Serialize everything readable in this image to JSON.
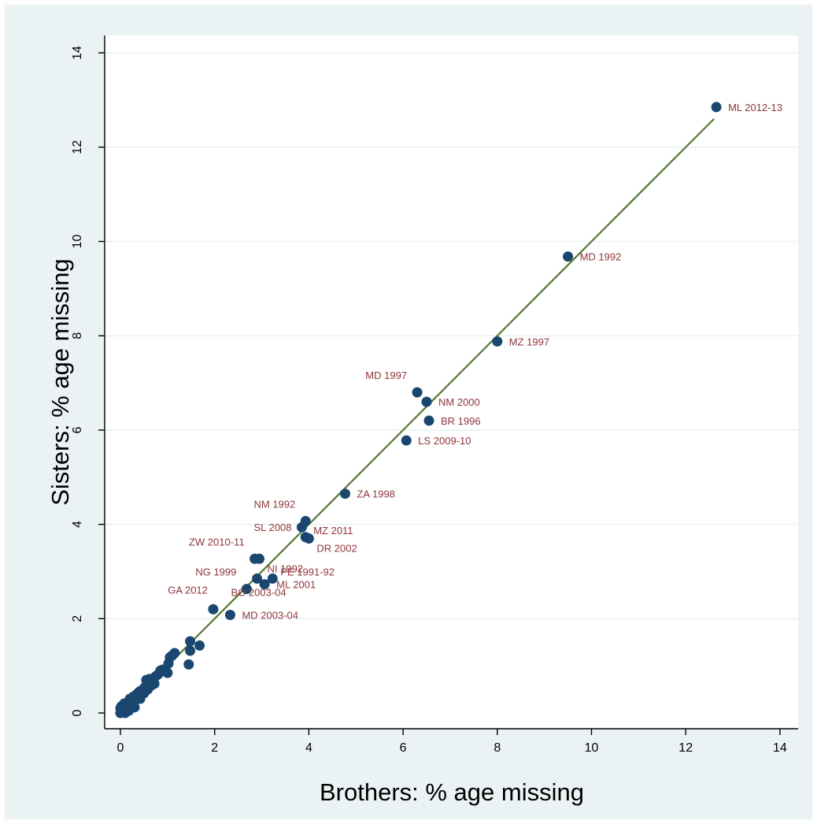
{
  "chart_data": {
    "type": "scatter",
    "xlabel": "Brothers: % age missing",
    "ylabel": "Sisters: % age missing",
    "xlim": [
      -0.4,
      14.3
    ],
    "ylim": [
      -0.4,
      14.5
    ],
    "xticks": [
      0,
      2,
      4,
      6,
      8,
      10,
      12,
      14
    ],
    "yticks": [
      0,
      2,
      4,
      6,
      8,
      10,
      12,
      14
    ],
    "grid": true,
    "colors": {
      "background": "#eaf2f3",
      "plot_area": "#ffffff",
      "grid": "#eaf2f3",
      "marker": "#1a476f",
      "fit_line": "#55752f",
      "label": "#90353b"
    },
    "fit_line": {
      "x": [
        0,
        12.6
      ],
      "y": [
        0,
        12.6
      ]
    },
    "labeled_points": [
      {
        "label": "ML 2012-13",
        "x": 12.65,
        "y": 12.85,
        "pos": "right"
      },
      {
        "label": "MD 1992",
        "x": 9.5,
        "y": 9.68,
        "pos": "right"
      },
      {
        "label": "MZ 1997",
        "x": 8.0,
        "y": 7.88,
        "pos": "right"
      },
      {
        "label": "MD 1997",
        "x": 6.3,
        "y": 6.8,
        "pos": "above-left"
      },
      {
        "label": "NM 2000",
        "x": 6.5,
        "y": 6.6,
        "pos": "right"
      },
      {
        "label": "BR 1996",
        "x": 6.55,
        "y": 6.2,
        "pos": "right"
      },
      {
        "label": "LS 2009-10",
        "x": 6.07,
        "y": 5.78,
        "pos": "right"
      },
      {
        "label": "ZA 1998",
        "x": 4.77,
        "y": 4.65,
        "pos": "right"
      },
      {
        "label": "NM 1992",
        "x": 3.93,
        "y": 4.07,
        "pos": "above-left"
      },
      {
        "label": "SL 2008",
        "x": 3.85,
        "y": 3.94,
        "pos": "left"
      },
      {
        "label": "MZ 2011",
        "x": 3.93,
        "y": 3.73,
        "pos": "upper-right"
      },
      {
        "label": "DR 2002",
        "x": 4.0,
        "y": 3.7,
        "pos": "lower-right"
      },
      {
        "label": "ZW 2010-11",
        "x": 2.85,
        "y": 3.27,
        "pos": "above-left"
      },
      {
        "label": "NI 1992",
        "x": 2.95,
        "y": 3.27,
        "pos": "lower-right"
      },
      {
        "label": "PE 1991-92",
        "x": 3.23,
        "y": 2.85,
        "pos": "upper-right"
      },
      {
        "label": "ML 2001",
        "x": 3.06,
        "y": 2.73,
        "pos": "right"
      },
      {
        "label": "NG 1999",
        "x": 2.68,
        "y": 2.63,
        "pos": "above-left"
      },
      {
        "label": "BO 2003-04",
        "x": 2.9,
        "y": 2.85,
        "pos": "below"
      },
      {
        "label": "GA 2012",
        "x": 1.97,
        "y": 2.2,
        "pos": "upper-left"
      },
      {
        "label": "MD 2003-04",
        "x": 2.33,
        "y": 2.08,
        "pos": "right"
      }
    ],
    "points": [
      [
        0.0,
        0.0
      ],
      [
        0.0,
        0.1
      ],
      [
        0.02,
        0.14
      ],
      [
        0.05,
        0.05
      ],
      [
        0.08,
        0.2
      ],
      [
        0.1,
        0.0
      ],
      [
        0.12,
        0.12
      ],
      [
        0.15,
        0.22
      ],
      [
        0.18,
        0.05
      ],
      [
        0.2,
        0.3
      ],
      [
        0.22,
        0.18
      ],
      [
        0.25,
        0.25
      ],
      [
        0.28,
        0.35
      ],
      [
        0.3,
        0.12
      ],
      [
        0.32,
        0.28
      ],
      [
        0.35,
        0.4
      ],
      [
        0.38,
        0.35
      ],
      [
        0.4,
        0.45
      ],
      [
        0.42,
        0.3
      ],
      [
        0.45,
        0.48
      ],
      [
        0.5,
        0.42
      ],
      [
        0.52,
        0.55
      ],
      [
        0.55,
        0.7
      ],
      [
        0.58,
        0.5
      ],
      [
        0.6,
        0.62
      ],
      [
        0.62,
        0.72
      ],
      [
        0.65,
        0.58
      ],
      [
        0.68,
        0.7
      ],
      [
        0.72,
        0.62
      ],
      [
        0.75,
        0.78
      ],
      [
        0.8,
        0.82
      ],
      [
        0.85,
        0.9
      ],
      [
        0.9,
        0.92
      ],
      [
        0.95,
        0.88
      ],
      [
        1.0,
        0.85
      ],
      [
        1.02,
        1.05
      ],
      [
        1.05,
        1.18
      ],
      [
        1.1,
        1.22
      ],
      [
        1.15,
        1.27
      ],
      [
        1.48,
        1.52
      ],
      [
        1.48,
        1.32
      ],
      [
        1.45,
        1.03
      ],
      [
        1.68,
        1.43
      ],
      [
        12.65,
        12.85
      ],
      [
        9.5,
        9.68
      ],
      [
        8.0,
        7.88
      ],
      [
        6.3,
        6.8
      ],
      [
        6.5,
        6.6
      ],
      [
        6.55,
        6.2
      ],
      [
        6.07,
        5.78
      ],
      [
        4.77,
        4.65
      ],
      [
        3.93,
        4.07
      ],
      [
        3.85,
        3.94
      ],
      [
        3.93,
        3.73
      ],
      [
        4.0,
        3.7
      ],
      [
        2.85,
        3.27
      ],
      [
        2.95,
        3.27
      ],
      [
        3.23,
        2.85
      ],
      [
        3.06,
        2.73
      ],
      [
        2.68,
        2.63
      ],
      [
        2.9,
        2.85
      ],
      [
        1.97,
        2.2
      ],
      [
        2.33,
        2.08
      ]
    ]
  }
}
